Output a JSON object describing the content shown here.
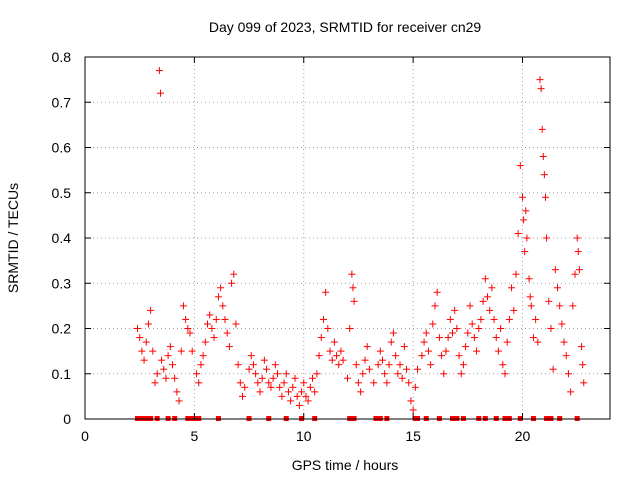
{
  "chart_data": {
    "type": "scatter",
    "title": "Day 099 of 2023, SRMTID for receiver cn29",
    "xlabel": "GPS time / hours",
    "ylabel": "SRMTID / TECUs",
    "xlim": [
      0,
      24
    ],
    "ylim": [
      0,
      0.8
    ],
    "xticks": [
      0,
      5,
      10,
      15,
      20
    ],
    "yticks": [
      0,
      0.1,
      0.2,
      0.3,
      0.4,
      0.5,
      0.6,
      0.7,
      0.8
    ],
    "xtick_labels": [
      "0",
      "5",
      "10",
      "15",
      "20"
    ],
    "ytick_labels": [
      "0",
      "0.1",
      "0.2",
      "0.3",
      "0.4",
      "0.5",
      "0.6",
      "0.7",
      "0.8"
    ],
    "grid": true,
    "marker": "+",
    "color": "#ff0000",
    "series": [
      {
        "name": "SRMTID",
        "points": [
          [
            2.4,
            0.2
          ],
          [
            2.5,
            0.18
          ],
          [
            2.6,
            0.15
          ],
          [
            2.7,
            0.13
          ],
          [
            2.8,
            0.17
          ],
          [
            2.9,
            0.21
          ],
          [
            3.0,
            0.24
          ],
          [
            3.1,
            0.15
          ],
          [
            3.2,
            0.08
          ],
          [
            3.3,
            0.1
          ],
          [
            3.4,
            0.77
          ],
          [
            3.45,
            0.72
          ],
          [
            3.5,
            0.13
          ],
          [
            3.6,
            0.11
          ],
          [
            3.7,
            0.09
          ],
          [
            3.8,
            0.14
          ],
          [
            3.9,
            0.16
          ],
          [
            4.0,
            0.12
          ],
          [
            4.1,
            0.09
          ],
          [
            4.2,
            0.06
          ],
          [
            4.3,
            0.04
          ],
          [
            4.4,
            0.15
          ],
          [
            4.5,
            0.25
          ],
          [
            4.6,
            0.22
          ],
          [
            4.7,
            0.2
          ],
          [
            4.8,
            0.19
          ],
          [
            4.9,
            0.15
          ],
          [
            5.1,
            0.1
          ],
          [
            5.2,
            0.08
          ],
          [
            5.3,
            0.12
          ],
          [
            5.4,
            0.14
          ],
          [
            5.5,
            0.17
          ],
          [
            5.6,
            0.21
          ],
          [
            5.7,
            0.23
          ],
          [
            5.8,
            0.2
          ],
          [
            5.9,
            0.18
          ],
          [
            6.0,
            0.22
          ],
          [
            6.1,
            0.27
          ],
          [
            6.2,
            0.29
          ],
          [
            6.3,
            0.25
          ],
          [
            6.4,
            0.22
          ],
          [
            6.5,
            0.19
          ],
          [
            6.6,
            0.16
          ],
          [
            6.7,
            0.3
          ],
          [
            6.8,
            0.32
          ],
          [
            6.9,
            0.21
          ],
          [
            7.0,
            0.12
          ],
          [
            7.1,
            0.08
          ],
          [
            7.2,
            0.05
          ],
          [
            7.3,
            0.07
          ],
          [
            7.5,
            0.11
          ],
          [
            7.6,
            0.14
          ],
          [
            7.7,
            0.12
          ],
          [
            7.8,
            0.1
          ],
          [
            7.9,
            0.08
          ],
          [
            8.0,
            0.06
          ],
          [
            8.1,
            0.09
          ],
          [
            8.2,
            0.13
          ],
          [
            8.3,
            0.11
          ],
          [
            8.4,
            0.08
          ],
          [
            8.5,
            0.07
          ],
          [
            8.6,
            0.09
          ],
          [
            8.7,
            0.12
          ],
          [
            8.8,
            0.1
          ],
          [
            8.9,
            0.07
          ],
          [
            9.0,
            0.05
          ],
          [
            9.1,
            0.08
          ],
          [
            9.2,
            0.1
          ],
          [
            9.3,
            0.06
          ],
          [
            9.4,
            0.04
          ],
          [
            9.5,
            0.07
          ],
          [
            9.6,
            0.09
          ],
          [
            9.7,
            0.05
          ],
          [
            9.8,
            0.03
          ],
          [
            9.9,
            0.06
          ],
          [
            10.0,
            0.08
          ],
          [
            10.1,
            0.05
          ],
          [
            10.2,
            0.04
          ],
          [
            10.3,
            0.07
          ],
          [
            10.4,
            0.09
          ],
          [
            10.5,
            0.06
          ],
          [
            10.6,
            0.1
          ],
          [
            10.7,
            0.14
          ],
          [
            10.8,
            0.18
          ],
          [
            10.9,
            0.22
          ],
          [
            11.0,
            0.28
          ],
          [
            11.1,
            0.2
          ],
          [
            11.2,
            0.15
          ],
          [
            11.3,
            0.13
          ],
          [
            11.4,
            0.17
          ],
          [
            11.5,
            0.14
          ],
          [
            11.6,
            0.12
          ],
          [
            11.7,
            0.15
          ],
          [
            11.8,
            0.13
          ],
          [
            12.0,
            0.09
          ],
          [
            12.1,
            0.2
          ],
          [
            12.2,
            0.32
          ],
          [
            12.25,
            0.29
          ],
          [
            12.3,
            0.26
          ],
          [
            12.4,
            0.12
          ],
          [
            12.5,
            0.08
          ],
          [
            12.6,
            0.06
          ],
          [
            12.7,
            0.1
          ],
          [
            12.8,
            0.13
          ],
          [
            12.9,
            0.16
          ],
          [
            13.0,
            0.11
          ],
          [
            13.2,
            0.08
          ],
          [
            13.4,
            0.12
          ],
          [
            13.5,
            0.15
          ],
          [
            13.6,
            0.13
          ],
          [
            13.7,
            0.1
          ],
          [
            13.8,
            0.08
          ],
          [
            13.9,
            0.12
          ],
          [
            14.0,
            0.17
          ],
          [
            14.1,
            0.19
          ],
          [
            14.2,
            0.14
          ],
          [
            14.3,
            0.1
          ],
          [
            14.4,
            0.12
          ],
          [
            14.5,
            0.09
          ],
          [
            14.6,
            0.16
          ],
          [
            14.7,
            0.11
          ],
          [
            14.8,
            0.08
          ],
          [
            14.9,
            0.04
          ],
          [
            15.0,
            0.02
          ],
          [
            15.1,
            0.07
          ],
          [
            15.2,
            0.11
          ],
          [
            15.4,
            0.14
          ],
          [
            15.5,
            0.17
          ],
          [
            15.6,
            0.19
          ],
          [
            15.7,
            0.15
          ],
          [
            15.8,
            0.12
          ],
          [
            15.9,
            0.21
          ],
          [
            16.0,
            0.25
          ],
          [
            16.1,
            0.28
          ],
          [
            16.2,
            0.18
          ],
          [
            16.3,
            0.14
          ],
          [
            16.4,
            0.1
          ],
          [
            16.5,
            0.15
          ],
          [
            16.6,
            0.18
          ],
          [
            16.7,
            0.22
          ],
          [
            16.8,
            0.19
          ],
          [
            16.9,
            0.24
          ],
          [
            17.0,
            0.2
          ],
          [
            17.1,
            0.14
          ],
          [
            17.2,
            0.1
          ],
          [
            17.3,
            0.12
          ],
          [
            17.4,
            0.16
          ],
          [
            17.5,
            0.19
          ],
          [
            17.6,
            0.25
          ],
          [
            17.7,
            0.21
          ],
          [
            17.8,
            0.18
          ],
          [
            17.9,
            0.15
          ],
          [
            18.0,
            0.2
          ],
          [
            18.1,
            0.22
          ],
          [
            18.2,
            0.26
          ],
          [
            18.3,
            0.31
          ],
          [
            18.4,
            0.27
          ],
          [
            18.5,
            0.24
          ],
          [
            18.6,
            0.29
          ],
          [
            18.7,
            0.22
          ],
          [
            18.8,
            0.18
          ],
          [
            18.9,
            0.15
          ],
          [
            19.0,
            0.2
          ],
          [
            19.1,
            0.12
          ],
          [
            19.2,
            0.1
          ],
          [
            19.3,
            0.17
          ],
          [
            19.4,
            0.22
          ],
          [
            19.5,
            0.29
          ],
          [
            19.6,
            0.24
          ],
          [
            19.7,
            0.32
          ],
          [
            19.8,
            0.41
          ],
          [
            19.9,
            0.56
          ],
          [
            20.0,
            0.49
          ],
          [
            20.05,
            0.44
          ],
          [
            20.1,
            0.37
          ],
          [
            20.15,
            0.46
          ],
          [
            20.2,
            0.4
          ],
          [
            20.3,
            0.31
          ],
          [
            20.35,
            0.27
          ],
          [
            20.4,
            0.25
          ],
          [
            20.5,
            0.18
          ],
          [
            20.6,
            0.22
          ],
          [
            20.7,
            0.17
          ],
          [
            20.8,
            0.75
          ],
          [
            20.85,
            0.73
          ],
          [
            20.9,
            0.64
          ],
          [
            20.95,
            0.58
          ],
          [
            21.0,
            0.54
          ],
          [
            21.05,
            0.49
          ],
          [
            21.1,
            0.4
          ],
          [
            21.2,
            0.26
          ],
          [
            21.3,
            0.2
          ],
          [
            21.4,
            0.11
          ],
          [
            21.5,
            0.33
          ],
          [
            21.6,
            0.29
          ],
          [
            21.7,
            0.25
          ],
          [
            21.8,
            0.21
          ],
          [
            21.9,
            0.17
          ],
          [
            22.0,
            0.14
          ],
          [
            22.1,
            0.1
          ],
          [
            22.2,
            0.06
          ],
          [
            22.3,
            0.25
          ],
          [
            22.4,
            0.32
          ],
          [
            22.5,
            0.4
          ],
          [
            22.55,
            0.37
          ],
          [
            22.6,
            0.33
          ],
          [
            22.7,
            0.16
          ],
          [
            22.75,
            0.12
          ],
          [
            22.8,
            0.08
          ]
        ]
      }
    ],
    "baseline_markers_x": [
      2.4,
      2.6,
      2.8,
      3.0,
      3.3,
      3.8,
      4.1,
      4.7,
      4.9,
      5.1,
      5.2,
      6.1,
      7.5,
      8.4,
      9.2,
      9.9,
      10.5,
      12.1,
      12.3,
      13.3,
      13.5,
      13.8,
      15.1,
      15.2,
      15.6,
      16.2,
      16.8,
      17.0,
      17.3,
      18.0,
      18.3,
      18.8,
      19.2,
      19.4,
      19.9,
      20.5,
      21.1,
      21.3,
      21.7,
      22.5
    ]
  }
}
